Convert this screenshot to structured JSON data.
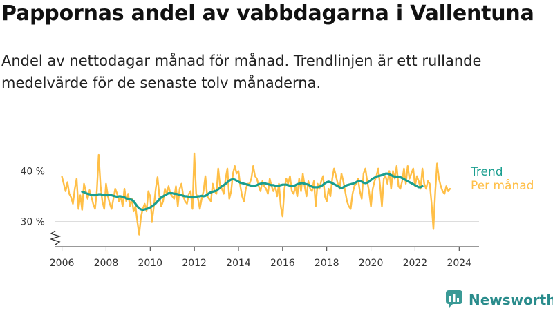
{
  "title": "Pappornas andel av vabbdagarna i Vallentuna",
  "subtitle": "Andel av nettodagar månad för månad. Trendlinjen är ett rullande medelvärde för de senaste tolv månaderna.",
  "brand": {
    "name": "Newsworthy",
    "icon": "newsworthy-logo-icon"
  },
  "colors": {
    "trend": "#1a9e8f",
    "monthly": "#ffbf47",
    "brand": "#2a8c8c",
    "grid": "#dddddd"
  },
  "chart_data": {
    "type": "line",
    "x_domain": [
      2005.7,
      2024.9
    ],
    "ylim": [
      25,
      45
    ],
    "yticks": [
      30,
      40
    ],
    "ytick_labels": [
      "30 %",
      "40 %"
    ],
    "xticks": [
      2006,
      2008,
      2010,
      2012,
      2014,
      2016,
      2018,
      2020,
      2022,
      2024
    ],
    "xtick_labels": [
      "2006",
      "2008",
      "2010",
      "2012",
      "2014",
      "2016",
      "2018",
      "2020",
      "2022",
      "2024"
    ],
    "axis_break": true,
    "grid": true,
    "legend": "right",
    "series": [
      {
        "name": "Per månad",
        "color": "#ffbf47",
        "x_start": 2006.0,
        "step_months": 1,
        "values": [
          38.9,
          37.5,
          36.0,
          37.8,
          35.5,
          34.8,
          33.5,
          36.5,
          38.5,
          32.5,
          35.2,
          32.3,
          37.5,
          36.0,
          34.5,
          36.2,
          35.0,
          33.5,
          32.5,
          36.0,
          43.2,
          37.0,
          34.0,
          32.5,
          37.5,
          35.0,
          33.5,
          32.5,
          34.5,
          36.5,
          35.5,
          34.0,
          35.0,
          33.0,
          36.5,
          34.0,
          35.5,
          33.0,
          34.5,
          32.0,
          33.0,
          30.0,
          27.4,
          31.0,
          32.5,
          33.5,
          32.0,
          36.0,
          35.0,
          30.0,
          33.0,
          36.5,
          38.8,
          35.0,
          33.0,
          34.0,
          36.5,
          35.5,
          37.0,
          35.5,
          35.0,
          34.5,
          37.0,
          33.0,
          36.5,
          37.5,
          35.0,
          34.0,
          33.5,
          35.5,
          36.0,
          32.5,
          43.5,
          35.5,
          34.5,
          32.5,
          34.5,
          36.0,
          39.0,
          35.0,
          34.5,
          34.0,
          37.5,
          36.0,
          35.5,
          40.5,
          37.0,
          36.5,
          35.5,
          38.5,
          40.5,
          34.5,
          36.0,
          39.5,
          41.0,
          39.5,
          40.0,
          37.0,
          35.0,
          34.0,
          36.5,
          37.5,
          37.5,
          38.5,
          41.0,
          39.0,
          38.5,
          37.0,
          36.0,
          38.0,
          37.0,
          36.5,
          35.5,
          38.5,
          37.0,
          36.0,
          37.0,
          35.0,
          37.5,
          33.0,
          31.0,
          36.5,
          38.5,
          37.5,
          39.0,
          36.0,
          35.5,
          37.0,
          35.0,
          38.5,
          36.0,
          39.5,
          37.0,
          35.0,
          38.0,
          36.5,
          36.0,
          38.0,
          33.0,
          37.5,
          36.5,
          38.0,
          39.0,
          35.0,
          34.0,
          36.5,
          35.0,
          38.5,
          40.5,
          39.0,
          37.5,
          36.5,
          39.5,
          38.0,
          36.0,
          34.0,
          33.0,
          32.5,
          35.5,
          37.0,
          37.5,
          38.5,
          36.0,
          34.5,
          39.5,
          40.5,
          38.0,
          36.0,
          33.0,
          36.5,
          38.0,
          39.0,
          40.5,
          37.0,
          33.0,
          38.5,
          39.0,
          37.5,
          40.0,
          36.5,
          40.0,
          38.5,
          41.0,
          37.0,
          36.5,
          38.0,
          40.5,
          37.5,
          41.0,
          38.5,
          39.5,
          40.5,
          37.0,
          39.0,
          38.0,
          36.5,
          40.5,
          37.5,
          36.5,
          38.0,
          37.5,
          33.5,
          28.5,
          36.0,
          41.5,
          38.5,
          37.0,
          36.0,
          35.5,
          37.0,
          36.0,
          36.5
        ]
      },
      {
        "name": "Trend",
        "color": "#1a9e8f",
        "x_start": 2006.917,
        "step_months": 1,
        "values": [
          35.9,
          35.8,
          35.6,
          35.5,
          35.4,
          35.3,
          35.2,
          35.2,
          35.3,
          35.4,
          35.4,
          35.3,
          35.2,
          35.2,
          35.2,
          35.3,
          35.2,
          35.1,
          35.0,
          34.9,
          35.0,
          35.0,
          34.9,
          34.8,
          34.6,
          34.5,
          34.4,
          34.3,
          34.0,
          33.5,
          33.0,
          32.6,
          32.4,
          32.3,
          32.4,
          32.5,
          32.6,
          32.8,
          33.0,
          33.3,
          33.6,
          34.0,
          34.4,
          34.8,
          35.0,
          35.2,
          35.4,
          35.6,
          35.6,
          35.6,
          35.5,
          35.5,
          35.4,
          35.3,
          35.2,
          35.1,
          35.0,
          35.0,
          34.9,
          34.8,
          34.8,
          34.8,
          34.9,
          35.0,
          35.0,
          35.1,
          35.0,
          35.1,
          35.3,
          35.6,
          35.8,
          35.9,
          36.0,
          36.1,
          36.4,
          36.7,
          37.0,
          37.2,
          37.5,
          37.8,
          38.1,
          38.3,
          38.4,
          38.3,
          38.1,
          37.9,
          37.7,
          37.6,
          37.5,
          37.4,
          37.3,
          37.2,
          37.1,
          37.0,
          37.1,
          37.2,
          37.4,
          37.5,
          37.6,
          37.6,
          37.5,
          37.4,
          37.3,
          37.2,
          37.2,
          37.1,
          37.1,
          37.1,
          37.2,
          37.3,
          37.3,
          37.3,
          37.2,
          37.1,
          37.0,
          37.0,
          37.2,
          37.4,
          37.5,
          37.6,
          37.6,
          37.5,
          37.4,
          37.3,
          37.1,
          36.9,
          36.8,
          36.8,
          36.8,
          36.9,
          37.0,
          37.3,
          37.6,
          37.8,
          37.9,
          37.8,
          37.6,
          37.4,
          37.2,
          37.0,
          36.8,
          36.6,
          36.8,
          37.0,
          37.2,
          37.3,
          37.4,
          37.5,
          37.6,
          37.8,
          38.0,
          38.0,
          37.9,
          37.7,
          37.6,
          37.7,
          37.9,
          38.2,
          38.5,
          38.7,
          38.9,
          39.0,
          39.1,
          39.2,
          39.3,
          39.5,
          39.5,
          39.4,
          39.2,
          39.0,
          38.9,
          38.9,
          38.9,
          38.8,
          38.6,
          38.4,
          38.2,
          38.0,
          37.8,
          37.6,
          37.4,
          37.2,
          37.0,
          36.8,
          36.8,
          37.0
        ]
      }
    ]
  }
}
